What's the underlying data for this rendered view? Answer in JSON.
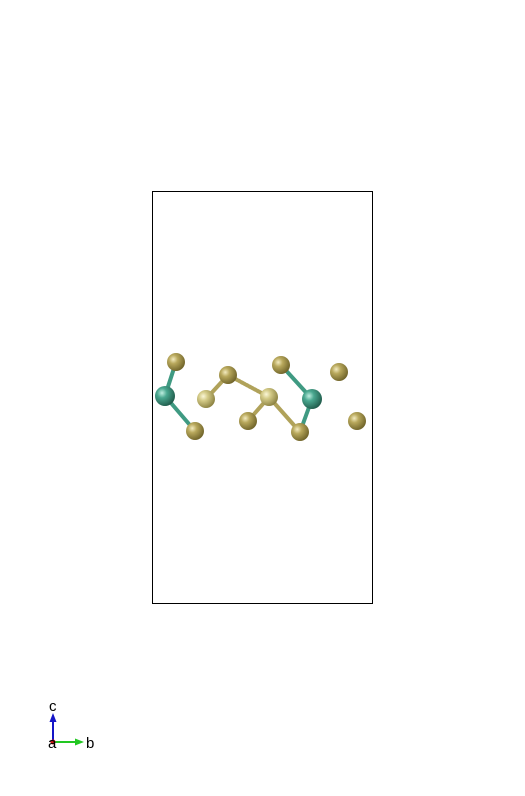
{
  "axes_indicator": {
    "c_label": "c",
    "a_label": "a",
    "b_label": "b",
    "c_color": "#1515c8",
    "b_color": "#22c722",
    "a_color": "#c81515"
  },
  "colors": {
    "background": "#ffffff",
    "cell_outline": "#000000",
    "atom_gold": "#9e9045",
    "atom_pale_gold": "#c9c07a",
    "atom_teal": "#3f9a82",
    "bond_gold": "#b0a25a",
    "bond_teal": "#3f9a82"
  }
}
